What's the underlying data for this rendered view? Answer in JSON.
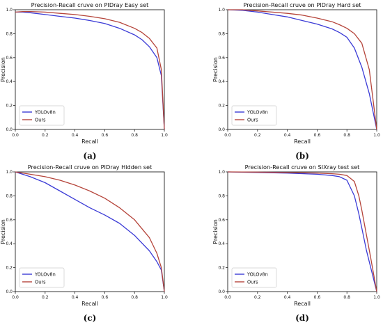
{
  "chart_data": [
    {
      "type": "line",
      "title": "Precision-Recall cruve on PIDray Easy set",
      "xlabel": "Recall",
      "ylabel": "Precision",
      "xlim": [
        0,
        1
      ],
      "ylim": [
        0,
        1
      ],
      "xticks": [
        "0.0",
        "0.2",
        "0.4",
        "0.6",
        "0.8",
        "1.0"
      ],
      "yticks": [
        "0.0",
        "0.2",
        "0.4",
        "0.6",
        "0.8",
        "1.0"
      ],
      "grid": false,
      "legend_position": "lower-left",
      "caption": "(a)",
      "series": [
        {
          "name": "YOLOv8n",
          "color": "#3b3bd6",
          "x": [
            0,
            0.05,
            0.1,
            0.2,
            0.3,
            0.4,
            0.5,
            0.6,
            0.7,
            0.8,
            0.85,
            0.9,
            0.95,
            0.98,
            1.0
          ],
          "y": [
            0.98,
            0.98,
            0.975,
            0.96,
            0.945,
            0.93,
            0.91,
            0.885,
            0.845,
            0.79,
            0.75,
            0.69,
            0.6,
            0.45,
            0.0
          ]
        },
        {
          "name": "Ours",
          "color": "#b5443a",
          "x": [
            0,
            0.05,
            0.1,
            0.2,
            0.3,
            0.4,
            0.5,
            0.6,
            0.7,
            0.8,
            0.85,
            0.9,
            0.95,
            0.98,
            1.0
          ],
          "y": [
            0.98,
            0.985,
            0.985,
            0.98,
            0.97,
            0.96,
            0.945,
            0.925,
            0.895,
            0.845,
            0.81,
            0.76,
            0.68,
            0.5,
            0.0
          ]
        }
      ]
    },
    {
      "type": "line",
      "title": "Precision-Recall cruve on PIDray Hard set",
      "xlabel": "Recall",
      "ylabel": "Precision",
      "xlim": [
        0,
        1
      ],
      "ylim": [
        0,
        1
      ],
      "xticks": [
        "0.0",
        "0.2",
        "0.4",
        "0.6",
        "0.8",
        "1.0"
      ],
      "yticks": [
        "0.0",
        "0.2",
        "0.4",
        "0.6",
        "0.8",
        "1.0"
      ],
      "grid": false,
      "legend_position": "lower-left",
      "caption": "(b)",
      "series": [
        {
          "name": "YOLOv8n",
          "color": "#3b3bd6",
          "x": [
            0,
            0.1,
            0.2,
            0.3,
            0.4,
            0.5,
            0.6,
            0.7,
            0.75,
            0.8,
            0.85,
            0.9,
            0.95,
            1.0
          ],
          "y": [
            1.0,
            0.995,
            0.98,
            0.96,
            0.94,
            0.91,
            0.88,
            0.84,
            0.81,
            0.77,
            0.68,
            0.52,
            0.3,
            0.0
          ]
        },
        {
          "name": "Ours",
          "color": "#b5443a",
          "x": [
            0,
            0.1,
            0.2,
            0.3,
            0.4,
            0.5,
            0.6,
            0.7,
            0.75,
            0.8,
            0.85,
            0.9,
            0.95,
            1.0
          ],
          "y": [
            1.0,
            1.0,
            0.99,
            0.98,
            0.97,
            0.955,
            0.93,
            0.9,
            0.875,
            0.845,
            0.8,
            0.72,
            0.5,
            0.0
          ]
        }
      ]
    },
    {
      "type": "line",
      "title": "Precision-Recall cruve on PIDray Hidden set",
      "xlabel": "Recall",
      "ylabel": "Precision",
      "xlim": [
        0,
        1
      ],
      "ylim": [
        0,
        1
      ],
      "xticks": [
        "0.0",
        "0.2",
        "0.4",
        "0.6",
        "0.8",
        "1.0"
      ],
      "yticks": [
        "0.0",
        "0.2",
        "0.4",
        "0.6",
        "0.8",
        "1.0"
      ],
      "grid": false,
      "legend_position": "lower-left",
      "caption": "(c)",
      "series": [
        {
          "name": "YOLOv8n",
          "color": "#3b3bd6",
          "x": [
            0,
            0.1,
            0.2,
            0.3,
            0.4,
            0.5,
            0.6,
            0.7,
            0.8,
            0.9,
            0.95,
            0.98,
            1.0
          ],
          "y": [
            1.0,
            0.96,
            0.91,
            0.84,
            0.77,
            0.7,
            0.64,
            0.57,
            0.47,
            0.34,
            0.25,
            0.18,
            0.0
          ]
        },
        {
          "name": "Ours",
          "color": "#b5443a",
          "x": [
            0,
            0.1,
            0.2,
            0.3,
            0.4,
            0.5,
            0.6,
            0.7,
            0.8,
            0.9,
            0.95,
            0.98,
            1.0
          ],
          "y": [
            1.0,
            0.98,
            0.96,
            0.93,
            0.89,
            0.84,
            0.78,
            0.7,
            0.6,
            0.45,
            0.32,
            0.2,
            0.0
          ]
        }
      ]
    },
    {
      "type": "line",
      "title": "Precision-Recall cruve on SIXray test set",
      "xlabel": "Recall",
      "ylabel": "Precision",
      "xlim": [
        0,
        1
      ],
      "ylim": [
        0,
        1
      ],
      "xticks": [
        "0.0",
        "0.2",
        "0.4",
        "0.6",
        "0.8",
        "1.0"
      ],
      "yticks": [
        "0.0",
        "0.2",
        "0.4",
        "0.6",
        "0.8",
        "1.0"
      ],
      "grid": false,
      "legend_position": "lower-left",
      "caption": "(d)",
      "series": [
        {
          "name": "YOLOv8n",
          "color": "#3b3bd6",
          "x": [
            0,
            0.2,
            0.4,
            0.6,
            0.7,
            0.75,
            0.8,
            0.85,
            0.88,
            0.9,
            0.93,
            0.96,
            1.0
          ],
          "y": [
            1.0,
            0.995,
            0.99,
            0.98,
            0.97,
            0.96,
            0.93,
            0.8,
            0.65,
            0.53,
            0.35,
            0.2,
            0.0
          ]
        },
        {
          "name": "Ours",
          "color": "#b5443a",
          "x": [
            0,
            0.2,
            0.4,
            0.6,
            0.7,
            0.75,
            0.8,
            0.85,
            0.88,
            0.9,
            0.93,
            0.96,
            1.0
          ],
          "y": [
            1.0,
            0.998,
            0.995,
            0.99,
            0.985,
            0.98,
            0.97,
            0.92,
            0.8,
            0.68,
            0.48,
            0.28,
            0.0
          ]
        }
      ]
    }
  ]
}
